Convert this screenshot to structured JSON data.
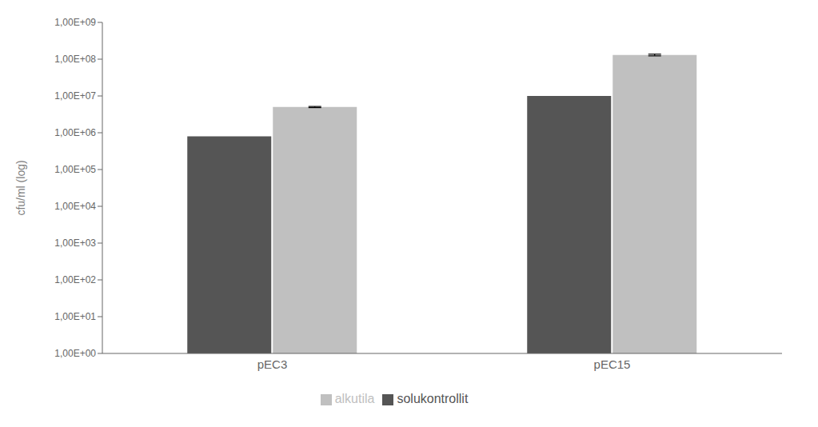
{
  "chart_data": {
    "type": "bar",
    "categories": [
      "pEC3",
      "pEC15"
    ],
    "series": [
      {
        "name": "solukontrollit",
        "color": "#555555",
        "values": [
          800000,
          10000000
        ],
        "errors": [
          0,
          0
        ]
      },
      {
        "name": "alkutila",
        "color": "#c0c0c0",
        "values": [
          5000000,
          130000000
        ],
        "errors": [
          180000,
          7000000
        ]
      }
    ],
    "ylabel": "cfu/ml (log)",
    "ylim": [
      1,
      1000000000
    ],
    "yticks": [
      {
        "value": 1,
        "label": "1,00E+00"
      },
      {
        "value": 10,
        "label": "1,00E+01"
      },
      {
        "value": 100,
        "label": "1,00E+02"
      },
      {
        "value": 1000,
        "label": "1,00E+03"
      },
      {
        "value": 10000,
        "label": "1,00E+04"
      },
      {
        "value": 100000,
        "label": "1,00E+05"
      },
      {
        "value": 1000000,
        "label": "1,00E+06"
      },
      {
        "value": 10000000,
        "label": "1,00E+07"
      },
      {
        "value": 100000000,
        "label": "1,00E+08"
      },
      {
        "value": 1000000000,
        "label": "1,00E+09"
      }
    ],
    "log": "y",
    "grid": false,
    "legend": "bottom"
  }
}
